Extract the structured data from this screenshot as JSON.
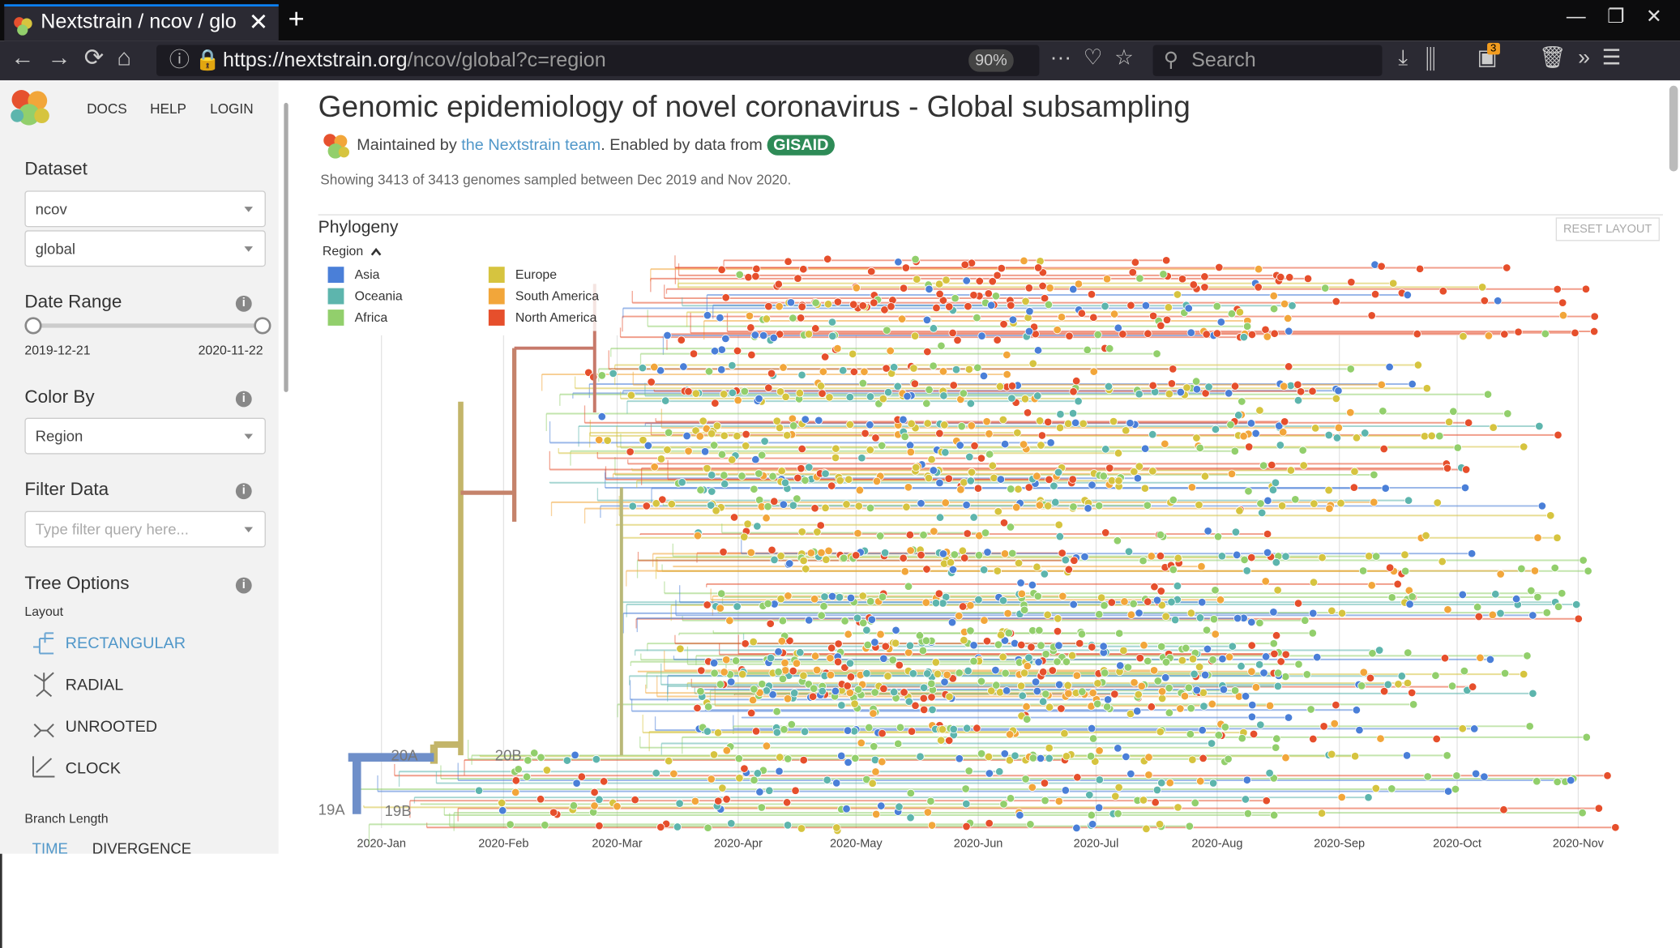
{
  "browser": {
    "tab_title": "Nextstrain / ncov / glo",
    "url_host": "https://nextstrain.org",
    "url_path": "/ncov/global?c=region",
    "zoom": "90%",
    "search_placeholder": "Search",
    "badge": "3"
  },
  "sidebar": {
    "nav": [
      "DOCS",
      "HELP",
      "LOGIN"
    ],
    "dataset": {
      "label": "Dataset",
      "selects": [
        "ncov",
        "global"
      ]
    },
    "date_range": {
      "label": "Date Range",
      "start": "2019-12-21",
      "end": "2020-11-22"
    },
    "color_by": {
      "label": "Color By",
      "value": "Region"
    },
    "filter": {
      "label": "Filter Data",
      "placeholder": "Type filter query here..."
    },
    "tree_options": {
      "label": "Tree Options",
      "layout_label": "Layout",
      "layouts": [
        "RECTANGULAR",
        "RADIAL",
        "UNROOTED",
        "CLOCK"
      ],
      "branch_length_label": "Branch Length",
      "branch_lengths": [
        "TIME",
        "DIVERGENCE"
      ]
    }
  },
  "header": {
    "title": "Genomic epidemiology of novel coronavirus - Global subsampling",
    "maintained_prefix": "Maintained by ",
    "maintainer": "the Nextstrain team",
    "enabled": ". Enabled by data from ",
    "gisaid": "GISAID",
    "summary": "Showing 3413 of 3413 genomes sampled between Dec 2019 and Nov 2020."
  },
  "phylogeny": {
    "title": "Phylogeny",
    "reset": "RESET LAYOUT",
    "legend_title": "Region",
    "legend": [
      {
        "name": "Asia",
        "color": "#4a7fd8"
      },
      {
        "name": "Oceania",
        "color": "#5db5ad"
      },
      {
        "name": "Africa",
        "color": "#92cf6c"
      },
      {
        "name": "Europe",
        "color": "#d6c43f"
      },
      {
        "name": "South America",
        "color": "#f2a63a"
      },
      {
        "name": "North America",
        "color": "#e64f2c"
      }
    ],
    "clades": [
      "19A",
      "19B",
      "20A",
      "20B"
    ],
    "x_labels": [
      "2020-Jan",
      "2020-Feb",
      "2020-Mar",
      "2020-Apr",
      "2020-May",
      "2020-Jun",
      "2020-Jul",
      "2020-Aug",
      "2020-Sep",
      "2020-Oct",
      "2020-Nov"
    ]
  }
}
